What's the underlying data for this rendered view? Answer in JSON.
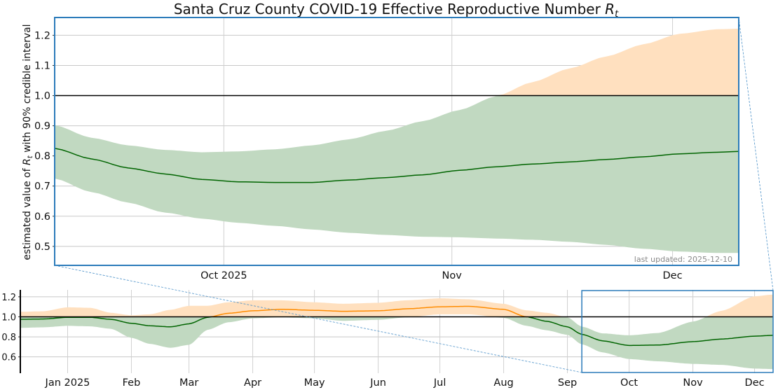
{
  "chart_data": [
    {
      "id": "main",
      "type": "area",
      "title": "Santa Cruz County COVID-19 Effective Reproductive Number",
      "title_math": "R",
      "title_math_sub": "t",
      "ylabel_pre": "estimated value of ",
      "ylabel_math": "R",
      "ylabel_math_sub": "t",
      "ylabel_post": " with 90% credible interval",
      "annotation": "last updated: 2025-12-10",
      "xlim_days": [
        "2025-09-08",
        "2025-12-10"
      ],
      "ylim": [
        0.437,
        1.259
      ],
      "yticks": [
        0.5,
        0.6,
        0.7,
        0.8,
        0.9,
        1.0,
        1.1,
        1.2
      ],
      "xticks": [
        {
          "date": "2025-10-01",
          "label": "Oct 2025"
        },
        {
          "date": "2025-11-01",
          "label": "Nov"
        },
        {
          "date": "2025-12-01",
          "label": "Dec"
        }
      ],
      "reference_line": 1.0,
      "grid": true,
      "colors": {
        "above": "#ffe0bf",
        "below": "#c1d9c1",
        "median_below": "#006400",
        "median_above": "#ff8c00",
        "frame": "#2b7bba"
      },
      "series": {
        "dates": [
          "2025-09-08",
          "2025-09-13",
          "2025-09-18",
          "2025-09-23",
          "2025-09-28",
          "2025-10-03",
          "2025-10-08",
          "2025-10-13",
          "2025-10-18",
          "2025-10-23",
          "2025-10-28",
          "2025-11-02",
          "2025-11-07",
          "2025-11-12",
          "2025-11-17",
          "2025-11-22",
          "2025-11-27",
          "2025-12-02",
          "2025-12-07",
          "2025-12-10"
        ],
        "median": [
          0.825,
          0.79,
          0.76,
          0.74,
          0.722,
          0.714,
          0.712,
          0.712,
          0.72,
          0.728,
          0.737,
          0.752,
          0.764,
          0.773,
          0.78,
          0.788,
          0.797,
          0.807,
          0.812,
          0.815
        ],
        "lower": [
          0.725,
          0.68,
          0.645,
          0.612,
          0.592,
          0.578,
          0.568,
          0.556,
          0.545,
          0.538,
          0.532,
          0.53,
          0.526,
          0.522,
          0.515,
          0.505,
          0.492,
          0.483,
          0.478,
          0.478
        ],
        "upper": [
          0.902,
          0.86,
          0.835,
          0.82,
          0.812,
          0.815,
          0.822,
          0.835,
          0.855,
          0.883,
          0.915,
          0.952,
          0.998,
          1.045,
          1.09,
          1.13,
          1.17,
          1.205,
          1.22,
          1.222
        ]
      }
    },
    {
      "id": "overview",
      "type": "area",
      "xlim_days": [
        "2024-12-09",
        "2025-12-10"
      ],
      "ylim": [
        0.437,
        1.269
      ],
      "yticks": [
        0.6,
        0.8,
        1.0,
        1.2
      ],
      "xticks": [
        {
          "date": "2025-01-01",
          "label": "Jan 2025"
        },
        {
          "date": "2025-02-01",
          "label": "Feb"
        },
        {
          "date": "2025-03-01",
          "label": "Mar"
        },
        {
          "date": "2025-04-01",
          "label": "Apr"
        },
        {
          "date": "2025-05-01",
          "label": "May"
        },
        {
          "date": "2025-06-01",
          "label": "Jun"
        },
        {
          "date": "2025-07-01",
          "label": "Jul"
        },
        {
          "date": "2025-08-01",
          "label": "Aug"
        },
        {
          "date": "2025-09-01",
          "label": "Sep"
        },
        {
          "date": "2025-10-01",
          "label": "Oct"
        },
        {
          "date": "2025-11-01",
          "label": "Nov"
        },
        {
          "date": "2025-12-01",
          "label": "Dec"
        }
      ],
      "reference_line": 1.0,
      "grid": true,
      "zoom_window": [
        "2025-09-08",
        "2025-12-10"
      ],
      "series": {
        "dates": [
          "2024-12-09",
          "2024-12-20",
          "2025-01-01",
          "2025-01-12",
          "2025-01-22",
          "2025-02-01",
          "2025-02-10",
          "2025-02-20",
          "2025-03-01",
          "2025-03-10",
          "2025-03-20",
          "2025-04-01",
          "2025-04-15",
          "2025-05-01",
          "2025-05-15",
          "2025-06-01",
          "2025-06-15",
          "2025-07-01",
          "2025-07-15",
          "2025-08-01",
          "2025-08-12",
          "2025-08-22",
          "2025-09-01",
          "2025-09-08",
          "2025-09-18",
          "2025-10-01",
          "2025-10-15",
          "2025-11-01",
          "2025-11-15",
          "2025-12-01",
          "2025-12-10"
        ],
        "median": [
          0.975,
          0.978,
          0.995,
          0.995,
          0.975,
          0.935,
          0.91,
          0.9,
          0.93,
          0.995,
          1.035,
          1.06,
          1.075,
          1.065,
          1.055,
          1.06,
          1.08,
          1.1,
          1.105,
          1.075,
          1.0,
          0.955,
          0.9,
          0.825,
          0.76,
          0.714,
          0.718,
          0.752,
          0.778,
          0.807,
          0.815
        ],
        "lower": [
          0.89,
          0.895,
          0.91,
          0.905,
          0.88,
          0.79,
          0.73,
          0.69,
          0.72,
          0.87,
          0.945,
          0.985,
          0.995,
          0.985,
          0.96,
          0.97,
          0.995,
          1.025,
          1.025,
          0.99,
          0.91,
          0.865,
          0.82,
          0.725,
          0.645,
          0.578,
          0.556,
          0.53,
          0.52,
          0.483,
          0.478
        ],
        "upper": [
          1.05,
          1.055,
          1.095,
          1.09,
          1.04,
          1.015,
          1.025,
          1.07,
          1.11,
          1.11,
          1.145,
          1.165,
          1.165,
          1.145,
          1.13,
          1.14,
          1.165,
          1.185,
          1.175,
          1.13,
          1.065,
          1.04,
          0.995,
          0.902,
          0.835,
          0.815,
          0.838,
          0.952,
          1.06,
          1.205,
          1.222
        ]
      }
    }
  ]
}
